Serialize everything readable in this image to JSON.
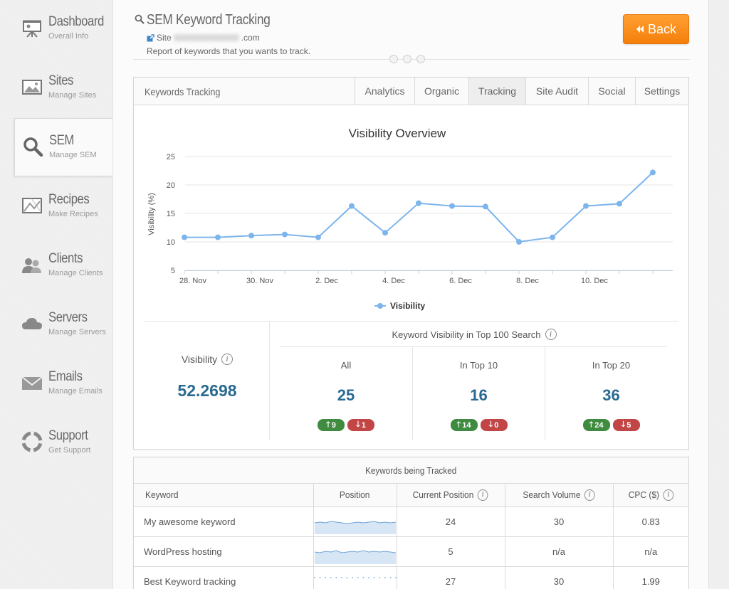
{
  "sidebar": {
    "items": [
      {
        "title": "Dashboard",
        "sub": "Overall Info",
        "icon": "presentation-board-icon"
      },
      {
        "title": "Sites",
        "sub": "Manage Sites",
        "icon": "image-icon"
      },
      {
        "title": "SEM",
        "sub": "Manage SEM",
        "icon": "search-icon",
        "active": true
      },
      {
        "title": "Recipes",
        "sub": "Make Recipes",
        "icon": "recipe-card-icon"
      },
      {
        "title": "Clients",
        "sub": "Manage Clients",
        "icon": "users-icon"
      },
      {
        "title": "Servers",
        "sub": "Manage Servers",
        "icon": "cloud-icon"
      },
      {
        "title": "Emails",
        "sub": "Manage Emails",
        "icon": "envelope-icon"
      },
      {
        "title": "Support",
        "sub": "Get Support",
        "icon": "lifebuoy-icon"
      }
    ]
  },
  "header": {
    "title": "SEM Keyword Tracking",
    "site_prefix": "Site",
    "site_suffix": ".com",
    "subtitle": "Report of keywords that you wants to track.",
    "back_label": "Back",
    "back_icon": "double-chevron-left-icon"
  },
  "panel": {
    "title": "Keywords Tracking",
    "tabs": [
      "Analytics",
      "Organic",
      "Tracking",
      "Site Audit",
      "Social",
      "Settings"
    ],
    "active_tab": "Tracking"
  },
  "chart_data": {
    "type": "line",
    "title": "Visibility Overview",
    "ylabel": "Visibility (%)",
    "xlabel": "",
    "ylim": [
      5,
      25
    ],
    "yticks": [
      "5",
      "10",
      "15",
      "20",
      "25"
    ],
    "xtick_labels": [
      "28. Nov",
      "30. Nov",
      "2. Dec",
      "4. Dec",
      "6. Dec",
      "8. Dec",
      "10. Dec"
    ],
    "x": [
      "28. Nov",
      "29. Nov",
      "30. Nov",
      "1. Dec",
      "2. Dec",
      "3. Dec",
      "4. Dec",
      "5. Dec",
      "6. Dec",
      "7. Dec",
      "8. Dec",
      "9. Dec",
      "10. Dec",
      "11. Dec",
      "12. Dec"
    ],
    "series": [
      {
        "name": "Visibility",
        "color": "#7cb5ec",
        "values": [
          10.8,
          10.8,
          11.1,
          11.3,
          10.8,
          16.3,
          11.6,
          16.8,
          16.3,
          16.2,
          10.0,
          10.8,
          16.3,
          16.7,
          22.2
        ]
      }
    ],
    "grid": true,
    "legend": "bottom-center"
  },
  "stats": {
    "visibility_label": "Visibility",
    "visibility_value": "52.2698",
    "top100_title": "Keyword Visibility in Top 100 Search",
    "columns": [
      {
        "title": "All",
        "value": "25",
        "up": "9",
        "down": "1"
      },
      {
        "title": "In Top 10",
        "value": "16",
        "up": "14",
        "down": "0"
      },
      {
        "title": "In Top 20",
        "value": "36",
        "up": "24",
        "down": "5"
      }
    ]
  },
  "keywords": {
    "title": "Keywords being Tracked",
    "headers": [
      "Keyword",
      "Position",
      "Current Position",
      "Search Volume",
      "CPC ($)"
    ],
    "rows": [
      {
        "keyword": "My awesome keyword",
        "current": "24",
        "volume": "30",
        "cpc": "0.83",
        "spark": [
          4,
          5,
          4,
          6,
          5,
          4,
          3,
          4,
          5,
          4,
          5,
          6,
          4,
          5,
          4,
          5
        ]
      },
      {
        "keyword": "WordPress hosting",
        "current": "5",
        "volume": "n/a",
        "cpc": "n/a",
        "spark": [
          5,
          4,
          6,
          5,
          7,
          4,
          5,
          6,
          5,
          7,
          5,
          6,
          5,
          6,
          5,
          4
        ]
      },
      {
        "keyword": "Best Keyword tracking",
        "current": "27",
        "volume": "30",
        "cpc": "1.99",
        "spark": [
          5,
          5,
          5,
          5,
          5,
          5,
          5,
          5,
          5,
          5,
          5,
          5,
          5,
          5,
          5,
          5
        ]
      }
    ]
  }
}
